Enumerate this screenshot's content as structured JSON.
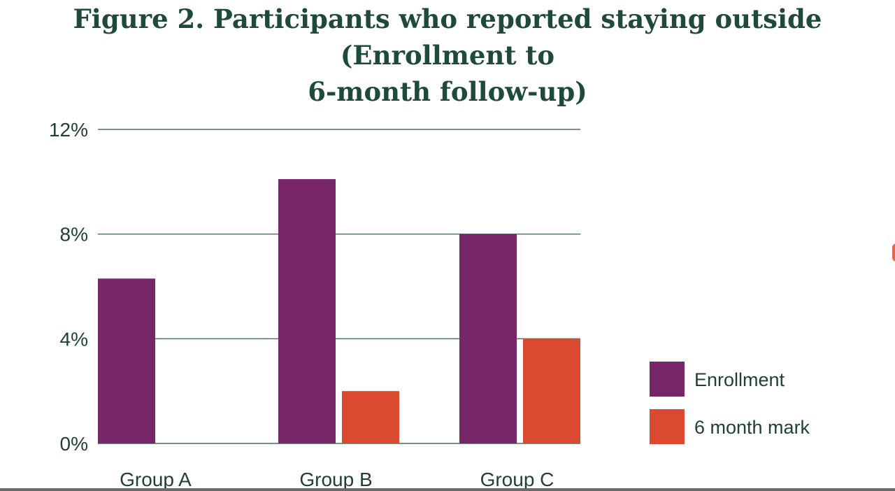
{
  "chart_data": {
    "type": "bar",
    "title_lines": [
      "Figure 2. Participants who reported staying outside (Enrollment to",
      "6-month follow-up)"
    ],
    "categories": [
      "Group A",
      "Group B",
      "Group C"
    ],
    "series": [
      {
        "name": "Enrollment",
        "values": [
          6.3,
          10.1,
          8.0
        ],
        "color": "#772668"
      },
      {
        "name": "6 month mark",
        "values": [
          0,
          2.0,
          4.0
        ],
        "color": "#da4a30"
      }
    ],
    "ylim": [
      0,
      12
    ],
    "yticks": [
      0,
      4,
      8,
      12
    ],
    "ytick_labels": [
      "0%",
      "4%",
      "8%",
      "12%"
    ],
    "gridlines": true,
    "grid_color": "#4c6e62",
    "legend_position": "right",
    "xlabel": "",
    "ylabel": ""
  }
}
